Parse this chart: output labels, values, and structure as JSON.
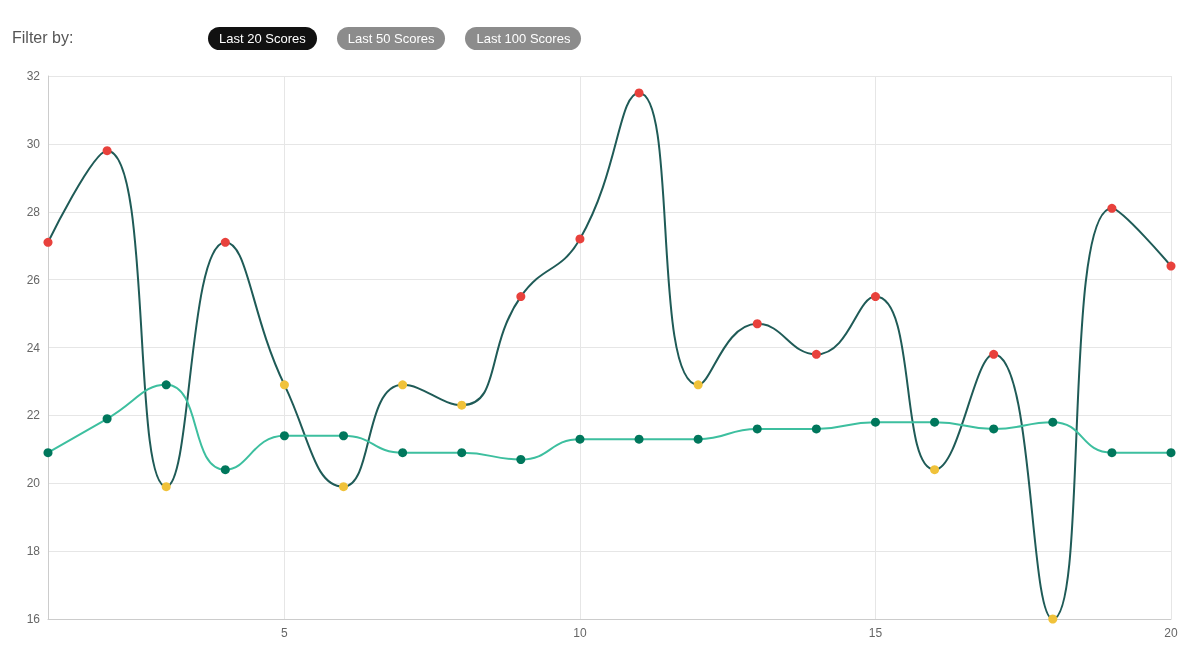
{
  "chart_data": {
    "type": "line",
    "annotations": [
      "Filter by:",
      "Last 20 Scores",
      "Last 50 Scores",
      "Last 100 Scores"
    ],
    "x": [
      1,
      2,
      3,
      4,
      5,
      6,
      7,
      8,
      9,
      10,
      11,
      12,
      13,
      14,
      15,
      16,
      17,
      18,
      19,
      20
    ],
    "series": [
      {
        "color": "#1f5b57",
        "values": [
          27.1,
          29.8,
          19.9,
          27.1,
          22.9,
          19.9,
          22.9,
          22.3,
          25.5,
          27.2,
          31.5,
          22.9,
          24.7,
          23.8,
          25.5,
          20.4,
          23.8,
          16.0,
          28.1,
          26.4
        ],
        "colors": [
          "#e8413c",
          "#e8413c",
          "#f0c23a",
          "#e8413c",
          "#f0c23a",
          "#f0c23a",
          "#f0c23a",
          "#f0c23a",
          "#e8413c",
          "#e8413c",
          "#e8413c",
          "#f0c23a",
          "#e8413c",
          "#e8413c",
          "#e8413c",
          "#f0c23a",
          "#e8413c",
          "#f0c23a",
          "#e8413c",
          "#e8413c"
        ]
      },
      {
        "color": "#3dbf9f",
        "values": [
          20.9,
          21.9,
          22.9,
          20.4,
          21.4,
          21.4,
          20.9,
          20.9,
          20.7,
          21.3,
          21.3,
          21.3,
          21.6,
          21.6,
          21.8,
          21.8,
          21.6,
          21.8,
          20.9,
          20.9
        ],
        "colors": [
          "#00775c",
          "#00775c",
          "#00775c",
          "#00775c",
          "#00775c",
          "#00775c",
          "#00775c",
          "#00775c",
          "#00775c",
          "#00775c",
          "#00775c",
          "#00775c",
          "#00775c",
          "#00775c",
          "#00775c",
          "#00775c",
          "#00775c",
          "#00775c",
          "#00775c",
          "#00775c"
        ]
      }
    ],
    "xlim": [
      1,
      20
    ],
    "xticks": [
      5,
      10,
      15,
      20
    ],
    "ylim": [
      16,
      32
    ],
    "yticks": [
      16,
      18,
      20,
      22,
      24,
      26,
      28,
      30,
      32
    ],
    "grid": true,
    "marker": "circle"
  }
}
